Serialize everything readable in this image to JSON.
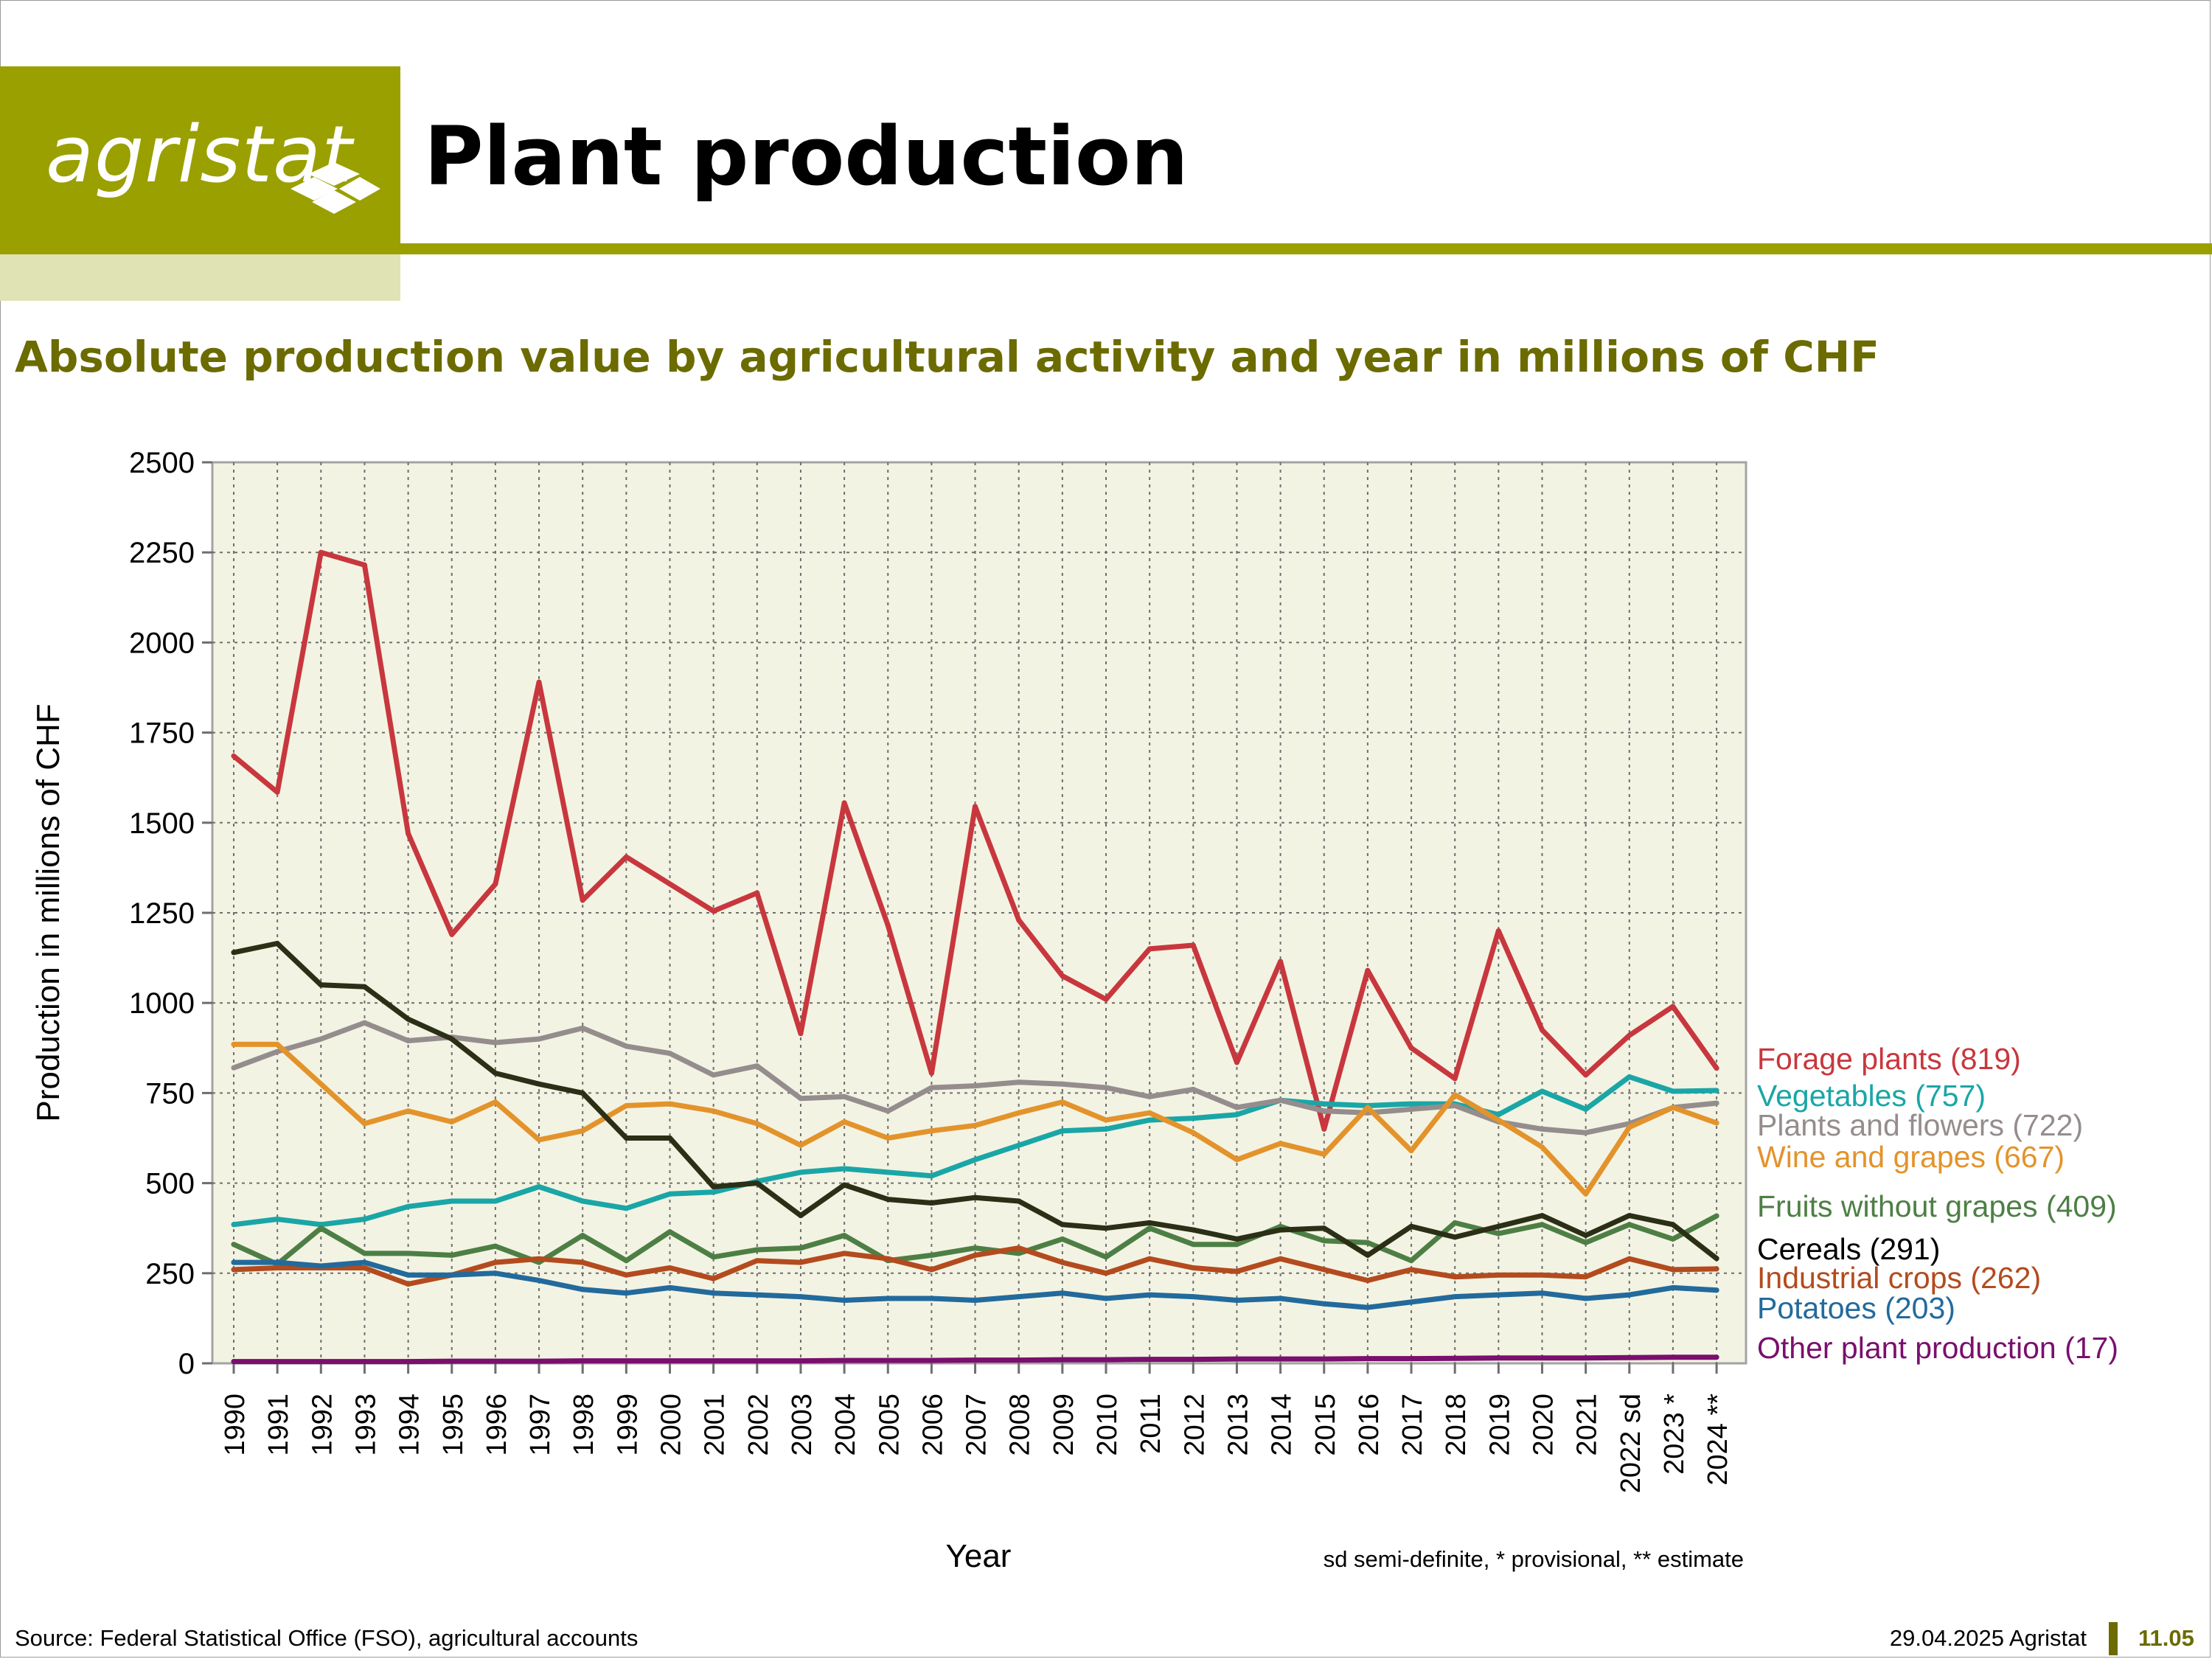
{
  "header": {
    "logo_text": "agristat",
    "title": "Plant production",
    "subtitle": "Absolute production value by agricultural activity and year in millions of CHF"
  },
  "footer": {
    "source": "Source: Federal Statistical Office (FSO), agricultural accounts",
    "date": "29.04.2025 Agristat",
    "page": "11.05"
  },
  "colors": {
    "accent": "#9aa000",
    "accent_light": "#e0e3b4",
    "subtitle": "#6b6b00",
    "plot_bg": "#f3f3e3"
  },
  "chart_data": {
    "type": "line",
    "title": "",
    "xlabel": "Year",
    "ylabel": "Production in millions of CHF",
    "footnote": "sd semi-definite, * provisional, ** estimate",
    "grid": true,
    "legend": "right",
    "ylim": [
      0,
      2500
    ],
    "yticks": [
      0,
      250,
      500,
      750,
      1000,
      1250,
      1500,
      1750,
      2000,
      2250,
      2500
    ],
    "categories": [
      "1990",
      "1991",
      "1992",
      "1993",
      "1994",
      "1995",
      "1996",
      "1997",
      "1998",
      "1999",
      "2000",
      "2001",
      "2002",
      "2003",
      "2004",
      "2005",
      "2006",
      "2007",
      "2008",
      "2009",
      "2010",
      "2011",
      "2012",
      "2013",
      "2014",
      "2015",
      "2016",
      "2017",
      "2018",
      "2019",
      "2020",
      "2021",
      "2022 sd",
      "2023 *",
      "2024 **"
    ],
    "series": [
      {
        "name": "Forage plants",
        "label": "Forage plants (819)",
        "color": "#c8373e",
        "values": [
          1685,
          1585,
          2250,
          2215,
          1470,
          1190,
          1330,
          1890,
          1285,
          1405,
          1330,
          1255,
          1305,
          915,
          1555,
          1215,
          805,
          1545,
          1230,
          1075,
          1010,
          1150,
          1160,
          835,
          1115,
          650,
          1090,
          875,
          790,
          1200,
          925,
          800,
          910,
          990,
          819
        ]
      },
      {
        "name": "Vegetables",
        "label": "Vegetables (757)",
        "color": "#1aa6a6",
        "values": [
          385,
          400,
          385,
          400,
          435,
          450,
          450,
          490,
          450,
          430,
          470,
          475,
          505,
          530,
          540,
          530,
          520,
          565,
          605,
          645,
          650,
          675,
          680,
          690,
          730,
          720,
          715,
          720,
          720,
          690,
          755,
          705,
          795,
          755,
          757
        ]
      },
      {
        "name": "Plants and flowers",
        "label": "Plants and flowers (722)",
        "color": "#958d8d",
        "values": [
          820,
          865,
          900,
          945,
          895,
          905,
          890,
          900,
          930,
          880,
          860,
          800,
          825,
          735,
          740,
          700,
          765,
          770,
          780,
          775,
          765,
          740,
          760,
          710,
          730,
          700,
          695,
          705,
          715,
          670,
          650,
          640,
          665,
          710,
          722
        ]
      },
      {
        "name": "Wine and grapes",
        "label": "Wine and grapes (667)",
        "color": "#e3932b",
        "values": [
          885,
          885,
          775,
          665,
          700,
          670,
          725,
          620,
          645,
          715,
          720,
          700,
          665,
          605,
          670,
          625,
          645,
          660,
          695,
          725,
          675,
          695,
          640,
          565,
          610,
          580,
          710,
          590,
          745,
          675,
          600,
          470,
          655,
          710,
          667
        ]
      },
      {
        "name": "Fruits without grapes",
        "label": "Fruits without grapes (409)",
        "color": "#4d7f45",
        "values": [
          330,
          275,
          375,
          305,
          305,
          300,
          325,
          280,
          355,
          285,
          365,
          295,
          315,
          320,
          355,
          285,
          300,
          320,
          305,
          345,
          295,
          375,
          330,
          330,
          380,
          340,
          335,
          285,
          390,
          360,
          385,
          335,
          385,
          345,
          409
        ]
      },
      {
        "name": "Cereals",
        "label": "Cereals (291)",
        "color": "#2b2f16",
        "values": [
          1140,
          1165,
          1050,
          1045,
          955,
          900,
          805,
          775,
          750,
          625,
          625,
          490,
          500,
          410,
          495,
          455,
          445,
          460,
          450,
          385,
          375,
          390,
          370,
          345,
          370,
          375,
          300,
          380,
          350,
          380,
          410,
          355,
          410,
          385,
          291
        ]
      },
      {
        "name": "Industrial crops",
        "label": "Industrial crops (262)",
        "color": "#b34b1e",
        "values": [
          260,
          265,
          265,
          265,
          220,
          245,
          280,
          290,
          280,
          245,
          265,
          235,
          285,
          280,
          305,
          290,
          260,
          300,
          320,
          280,
          250,
          290,
          265,
          255,
          290,
          260,
          230,
          260,
          240,
          245,
          245,
          240,
          290,
          260,
          262
        ]
      },
      {
        "name": "Potatoes",
        "label": "Potatoes (203)",
        "color": "#236a9c",
        "values": [
          280,
          280,
          270,
          280,
          245,
          245,
          250,
          230,
          205,
          195,
          210,
          195,
          190,
          185,
          175,
          180,
          180,
          175,
          185,
          195,
          180,
          190,
          185,
          175,
          180,
          165,
          155,
          170,
          185,
          190,
          195,
          180,
          190,
          210,
          203
        ]
      },
      {
        "name": "Other plant production",
        "label": "Other plant production (17)",
        "color": "#7a0f6e",
        "values": [
          5,
          5,
          5,
          5,
          5,
          6,
          6,
          6,
          7,
          7,
          7,
          7,
          7,
          7,
          8,
          8,
          8,
          9,
          9,
          10,
          10,
          11,
          11,
          12,
          12,
          12,
          13,
          13,
          14,
          15,
          15,
          15,
          16,
          17,
          17
        ]
      }
    ]
  }
}
